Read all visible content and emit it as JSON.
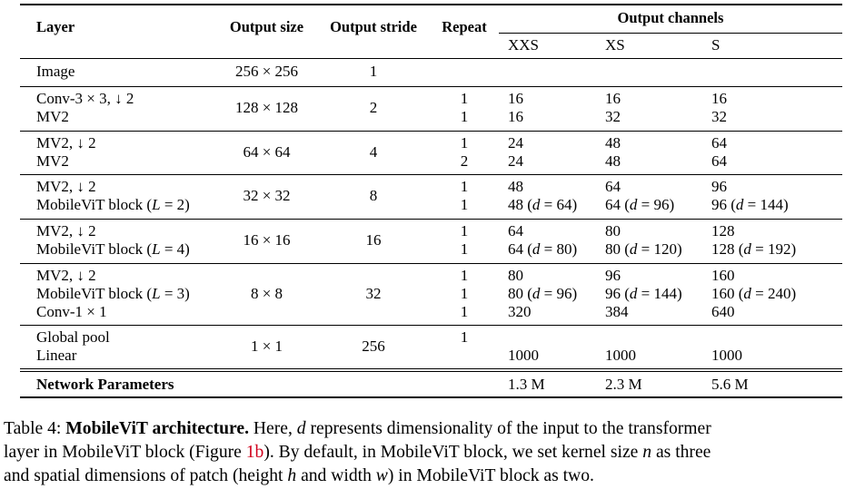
{
  "table": {
    "headers": {
      "layer": "Layer",
      "output_size": "Output size",
      "output_stride": "Output stride",
      "repeat": "Repeat",
      "output_channels": "Output channels",
      "xxs": "XXS",
      "xs": "XS",
      "s": "S"
    },
    "groups": [
      {
        "layers": [
          "Image"
        ],
        "output_size": "256 × 256",
        "output_stride": "1",
        "repeat": [
          ""
        ],
        "xxs": [
          ""
        ],
        "xs": [
          ""
        ],
        "s": [
          ""
        ]
      },
      {
        "layers": [
          "Conv-3 × 3, ↓ 2",
          "MV2"
        ],
        "output_size": "128 × 128",
        "output_stride": "2",
        "repeat": [
          "1",
          "1"
        ],
        "xxs": [
          "16",
          "16"
        ],
        "xs": [
          "16",
          "32"
        ],
        "s": [
          "16",
          "32"
        ]
      },
      {
        "layers": [
          "MV2, ↓ 2",
          "MV2"
        ],
        "output_size": "64 × 64",
        "output_stride": "4",
        "repeat": [
          "1",
          "2"
        ],
        "xxs": [
          "24",
          "24"
        ],
        "xs": [
          "48",
          "48"
        ],
        "s": [
          "64",
          "64"
        ]
      },
      {
        "layers": [
          "MV2, ↓ 2",
          "MobileViT block (L = 2)"
        ],
        "output_size": "32 × 32",
        "output_stride": "8",
        "repeat": [
          "1",
          "1"
        ],
        "xxs": [
          "48",
          "48 (d = 64)"
        ],
        "xs": [
          "64",
          "64 (d = 96)"
        ],
        "s": [
          "96",
          "96 (d = 144)"
        ]
      },
      {
        "layers": [
          "MV2, ↓ 2",
          "MobileViT block (L = 4)"
        ],
        "output_size": "16 × 16",
        "output_stride": "16",
        "repeat": [
          "1",
          "1"
        ],
        "xxs": [
          "64",
          "64 (d = 80)"
        ],
        "xs": [
          "80",
          "80 (d = 120)"
        ],
        "s": [
          "128",
          "128 (d = 192)"
        ]
      },
      {
        "layers": [
          "MV2, ↓ 2",
          "MobileViT block (L = 3)",
          "Conv-1 × 1"
        ],
        "output_size": "8 × 8",
        "output_stride": "32",
        "repeat": [
          "1",
          "1",
          "1"
        ],
        "xxs": [
          "80",
          "80 (d = 96)",
          "320"
        ],
        "xs": [
          "96",
          "96 (d = 144)",
          "384"
        ],
        "s": [
          "160",
          "160 (d = 240)",
          "640"
        ]
      },
      {
        "layers": [
          "Global pool",
          "Linear"
        ],
        "output_size": "1 × 1",
        "output_stride": "256",
        "repeat": [
          "1",
          ""
        ],
        "xxs": [
          "",
          "1000"
        ],
        "xs": [
          "",
          "1000"
        ],
        "s": [
          "",
          "1000"
        ]
      }
    ],
    "params": {
      "label": "Network Parameters",
      "xxs": "1.3 M",
      "xs": "2.3 M",
      "s": "5.6 M"
    }
  },
  "caption": {
    "label": "Table 4:",
    "title": "MobileViT architecture.",
    "line1_a": "Here,",
    "var_d": "d",
    "line1_b": "represents dimensionality of the input to the transformer",
    "line2_a": "layer in MobileViT block (Figure",
    "figure_ref": "1b",
    "line2_b": "). By default, in MobileViT block, we set kernel size",
    "var_n": "n",
    "line2_c": "as three",
    "line3_a": "and spatial dimensions of patch (height",
    "var_h": "h",
    "line3_b": "and width",
    "var_w": "w",
    "line3_c": ") in MobileViT block as two."
  }
}
